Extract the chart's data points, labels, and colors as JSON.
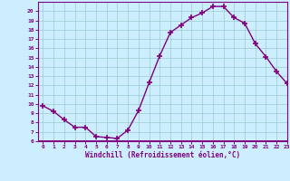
{
  "x": [
    0,
    1,
    2,
    3,
    4,
    5,
    6,
    7,
    8,
    9,
    10,
    11,
    12,
    13,
    14,
    15,
    16,
    17,
    18,
    19,
    20,
    21,
    22,
    23
  ],
  "y": [
    9.8,
    9.2,
    8.3,
    7.5,
    7.5,
    6.5,
    6.4,
    6.3,
    7.2,
    9.3,
    12.3,
    15.2,
    17.7,
    18.5,
    19.3,
    19.8,
    20.5,
    20.5,
    19.3,
    18.7,
    16.5,
    15.1,
    13.5,
    12.2
  ],
  "line_color": "#800080",
  "marker": "+",
  "marker_size": 4,
  "marker_linewidth": 1.2,
  "background_color": "#cceeff",
  "grid_color": "#99cccc",
  "xlabel": "Windchill (Refroidissement éolien,°C)",
  "xlim": [
    -0.5,
    23
  ],
  "ylim": [
    6,
    21
  ],
  "yticks": [
    6,
    7,
    8,
    9,
    10,
    11,
    12,
    13,
    14,
    15,
    16,
    17,
    18,
    19,
    20
  ],
  "xticks": [
    0,
    1,
    2,
    3,
    4,
    5,
    6,
    7,
    8,
    9,
    10,
    11,
    12,
    13,
    14,
    15,
    16,
    17,
    18,
    19,
    20,
    21,
    22,
    23
  ],
  "tick_label_color": "#800080",
  "xlabel_color": "#800080",
  "spine_color": "#800080",
  "axis_bg_color": "#cceeff",
  "outer_bg_color": "#cceeff"
}
